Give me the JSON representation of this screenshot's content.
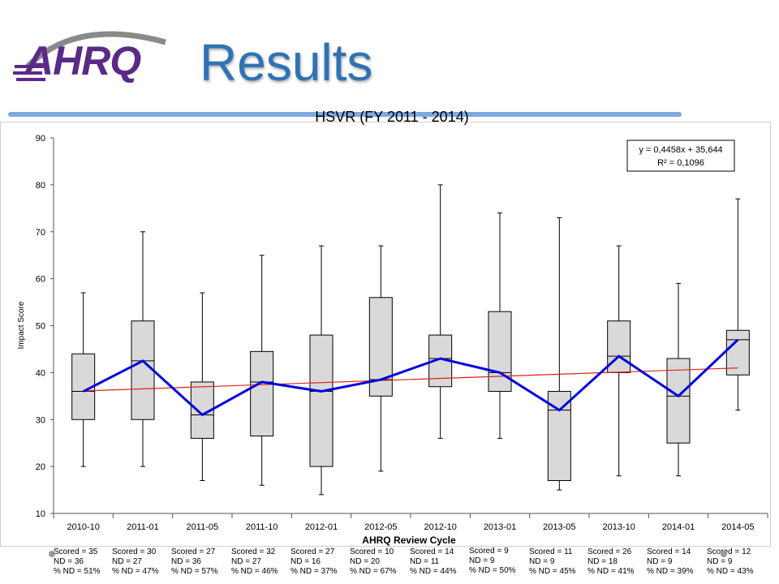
{
  "header": {
    "logo_text": "AHRQ",
    "title": "Results"
  },
  "colors": {
    "box_fill": "#d9d9d9",
    "median_line": "#0000dd",
    "trend_line": "#e0231c",
    "title_blue": "#2f73b5",
    "logo_purple": "#5b2a86"
  },
  "chart_data": {
    "type": "boxplot",
    "title": "HSVR (FY 2011 - 2014)",
    "xlabel": "AHRQ Review Cycle",
    "ylabel": "Impact Score",
    "ylim": [
      10,
      90
    ],
    "yticks": [
      10,
      20,
      30,
      40,
      50,
      60,
      70,
      80,
      90
    ],
    "grid": false,
    "categories": [
      "2010-10",
      "2011-01",
      "2011-05",
      "2011-10",
      "2012-01",
      "2012-05",
      "2012-10",
      "2013-01",
      "2013-05",
      "2013-10",
      "2014-01",
      "2014-05"
    ],
    "boxes": [
      {
        "min": 20,
        "q1": 30,
        "median": 36,
        "q3": 44,
        "max": 57
      },
      {
        "min": 20,
        "q1": 30,
        "median": 42.5,
        "q3": 51,
        "max": 70
      },
      {
        "min": 17,
        "q1": 26,
        "median": 31,
        "q3": 38,
        "max": 57
      },
      {
        "min": 16,
        "q1": 26.5,
        "median": 38,
        "q3": 44.5,
        "max": 65
      },
      {
        "min": 14,
        "q1": 20,
        "median": 36,
        "q3": 48,
        "max": 67
      },
      {
        "min": 19,
        "q1": 35,
        "median": 38.5,
        "q3": 56,
        "max": 67
      },
      {
        "min": 26,
        "q1": 37,
        "median": 43,
        "q3": 48,
        "max": 80
      },
      {
        "min": 26,
        "q1": 36,
        "median": 40,
        "q3": 53,
        "max": 74
      },
      {
        "min": 15,
        "q1": 17,
        "median": 32,
        "q3": 36,
        "max": 73
      },
      {
        "min": 18,
        "q1": 40,
        "median": 43.5,
        "q3": 51,
        "max": 67
      },
      {
        "min": 18,
        "q1": 25,
        "median": 35,
        "q3": 43,
        "max": 59
      },
      {
        "min": 32,
        "q1": 39.5,
        "median": 47,
        "q3": 49,
        "max": 77
      }
    ],
    "trendline": {
      "equation": "y = 0,4458x + 35,644",
      "r2": "R² = 0,1096",
      "slope": 0.4458,
      "intercept": 35.644
    },
    "legend_position": "top-right"
  },
  "footnotes": [
    {
      "scored": "Scored = 35",
      "nd": "ND = 36",
      "pct": "% ND = 51%"
    },
    {
      "scored": "Scored = 30",
      "nd": "ND = 27",
      "pct": "% ND = 47%"
    },
    {
      "scored": "Scored = 27",
      "nd": "ND = 36",
      "pct": "% ND = 57%"
    },
    {
      "scored": "Scored = 32",
      "nd": "ND = 27",
      "pct": "% ND = 46%"
    },
    {
      "scored": "Scored = 27",
      "nd": "ND = 16",
      "pct": "% ND = 37%"
    },
    {
      "scored": "Scored = 10",
      "nd": "ND = 20",
      "pct": "% ND = 67%"
    },
    {
      "scored": "Scored = 14",
      "nd": "ND = 11",
      "pct": "% ND = 44%"
    },
    {
      "scored": "Scored = 9",
      "nd": "ND = 9",
      "pct": "% ND = 50%"
    },
    {
      "scored": "Scored = 11",
      "nd": "ND = 9",
      "pct": "% ND = 45%"
    },
    {
      "scored": "Scored = 26",
      "nd": "ND = 18",
      "pct": "% ND = 41%"
    },
    {
      "scored": "Scored = 14",
      "nd": "ND = 9",
      "pct": "% ND = 39%"
    },
    {
      "scored": "Scored = 12",
      "nd": "ND = 9",
      "pct": "% ND = 43%"
    }
  ]
}
